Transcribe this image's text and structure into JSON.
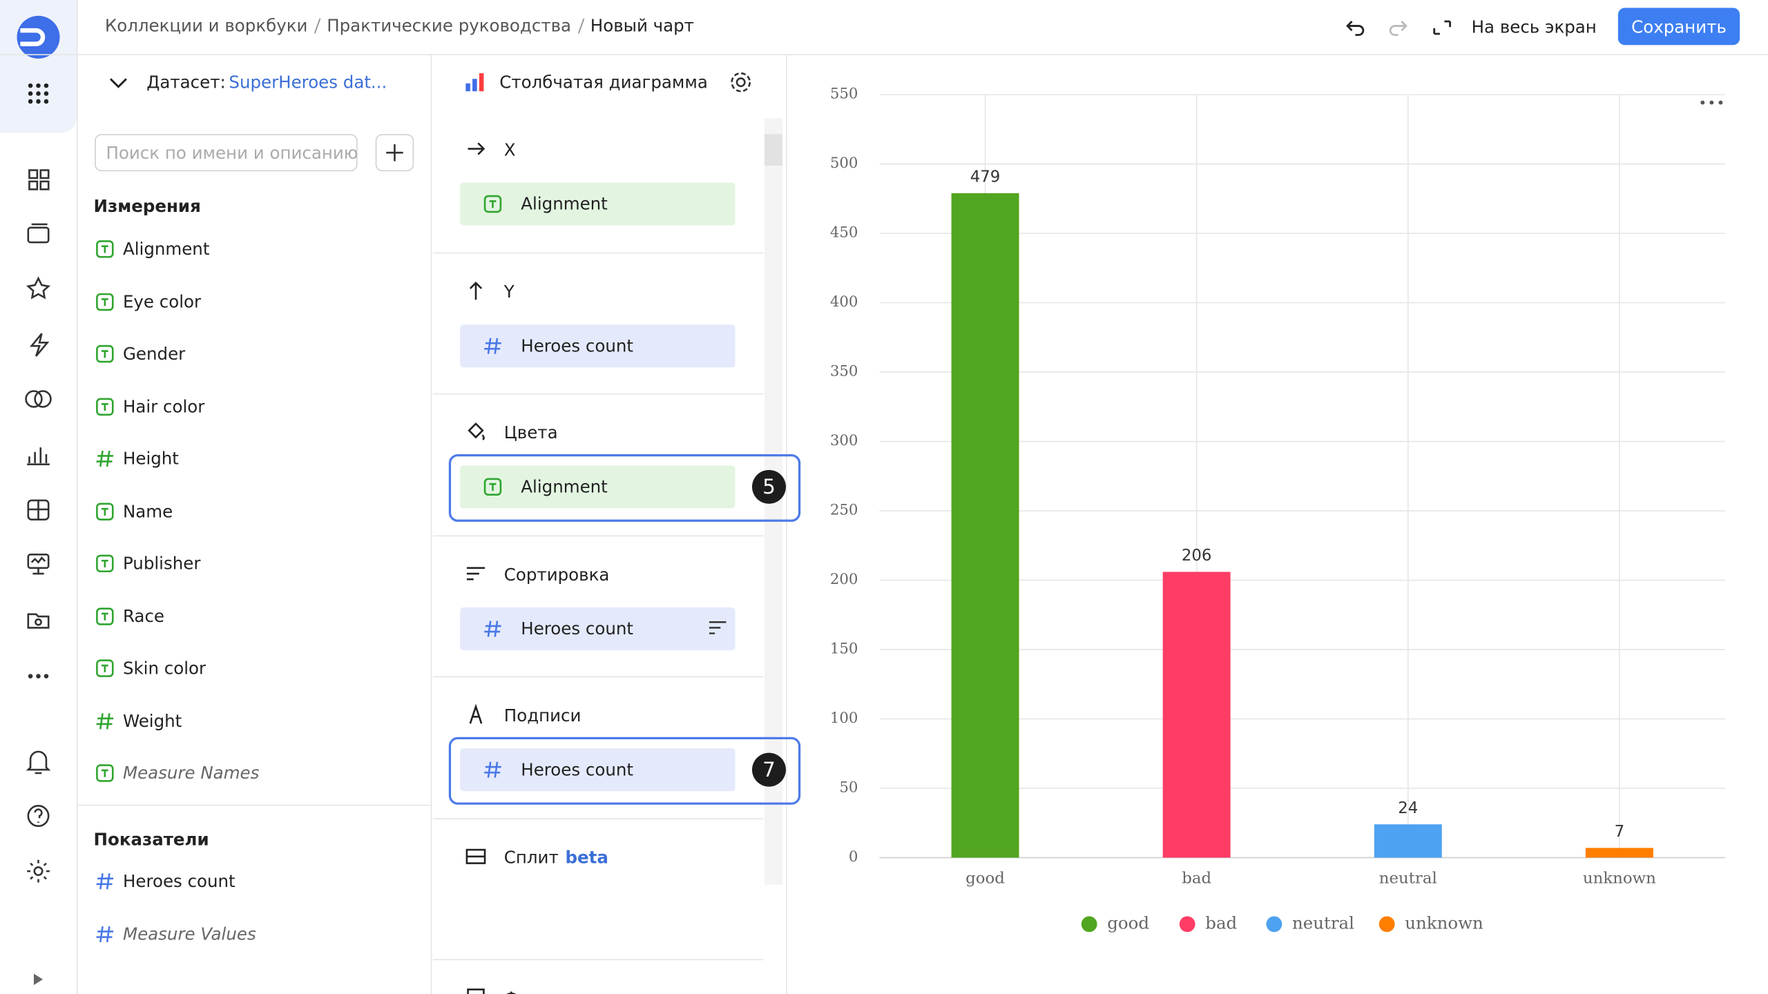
{
  "header": {
    "breadcrumbs": [
      "Коллекции и воркбуки",
      "Практические руководства",
      "Новый чарт"
    ],
    "fullscreen": "На весь экран",
    "save": "Сохранить"
  },
  "dataset": {
    "label": "Датасет:",
    "name": "SuperHeroes dat...",
    "search_placeholder": "Поиск по имени и описанию"
  },
  "dimensions": {
    "title": "Измерения",
    "items": [
      {
        "name": "Alignment",
        "kind": "text"
      },
      {
        "name": "Eye color",
        "kind": "text"
      },
      {
        "name": "Gender",
        "kind": "text"
      },
      {
        "name": "Hair color",
        "kind": "text"
      },
      {
        "name": "Height",
        "kind": "number"
      },
      {
        "name": "Name",
        "kind": "text"
      },
      {
        "name": "Publisher",
        "kind": "text"
      },
      {
        "name": "Race",
        "kind": "text"
      },
      {
        "name": "Skin color",
        "kind": "text"
      },
      {
        "name": "Weight",
        "kind": "number"
      },
      {
        "name": "Measure Names",
        "kind": "text",
        "italic": true
      }
    ]
  },
  "measures": {
    "title": "Показатели",
    "items": [
      {
        "name": "Heroes count",
        "kind": "measure"
      },
      {
        "name": "Measure Values",
        "kind": "measure",
        "italic": true
      }
    ]
  },
  "visualization": {
    "type_name": "Столбчатая диаграмма",
    "sections": [
      {
        "title": "X",
        "field": {
          "name": "Alignment",
          "kind": "text"
        }
      },
      {
        "title": "Y",
        "field": {
          "name": "Heroes count",
          "kind": "measure"
        }
      },
      {
        "title": "Цвета",
        "field": {
          "name": "Alignment",
          "kind": "text"
        },
        "badge": "5"
      },
      {
        "title": "Сортировка",
        "field": {
          "name": "Heroes count",
          "kind": "measure"
        }
      },
      {
        "title": "Подписи",
        "field": {
          "name": "Heroes count",
          "kind": "measure"
        },
        "badge": "7"
      },
      {
        "title": "Сплит",
        "tag": "beta"
      },
      {
        "title": "Фильтры"
      }
    ]
  },
  "chart_data": {
    "type": "bar",
    "categories": [
      "good",
      "bad",
      "neutral",
      "unknown"
    ],
    "values": [
      479,
      206,
      24,
      7
    ],
    "colors": [
      "#52a520",
      "#ff3d64",
      "#4da2f1",
      "#ff7e00"
    ],
    "ylim": [
      0,
      550
    ],
    "yticks": [
      0,
      50,
      100,
      150,
      200,
      250,
      300,
      350,
      400,
      450,
      500,
      550
    ],
    "grid": true,
    "legend": "bottom",
    "data_labels": true
  }
}
